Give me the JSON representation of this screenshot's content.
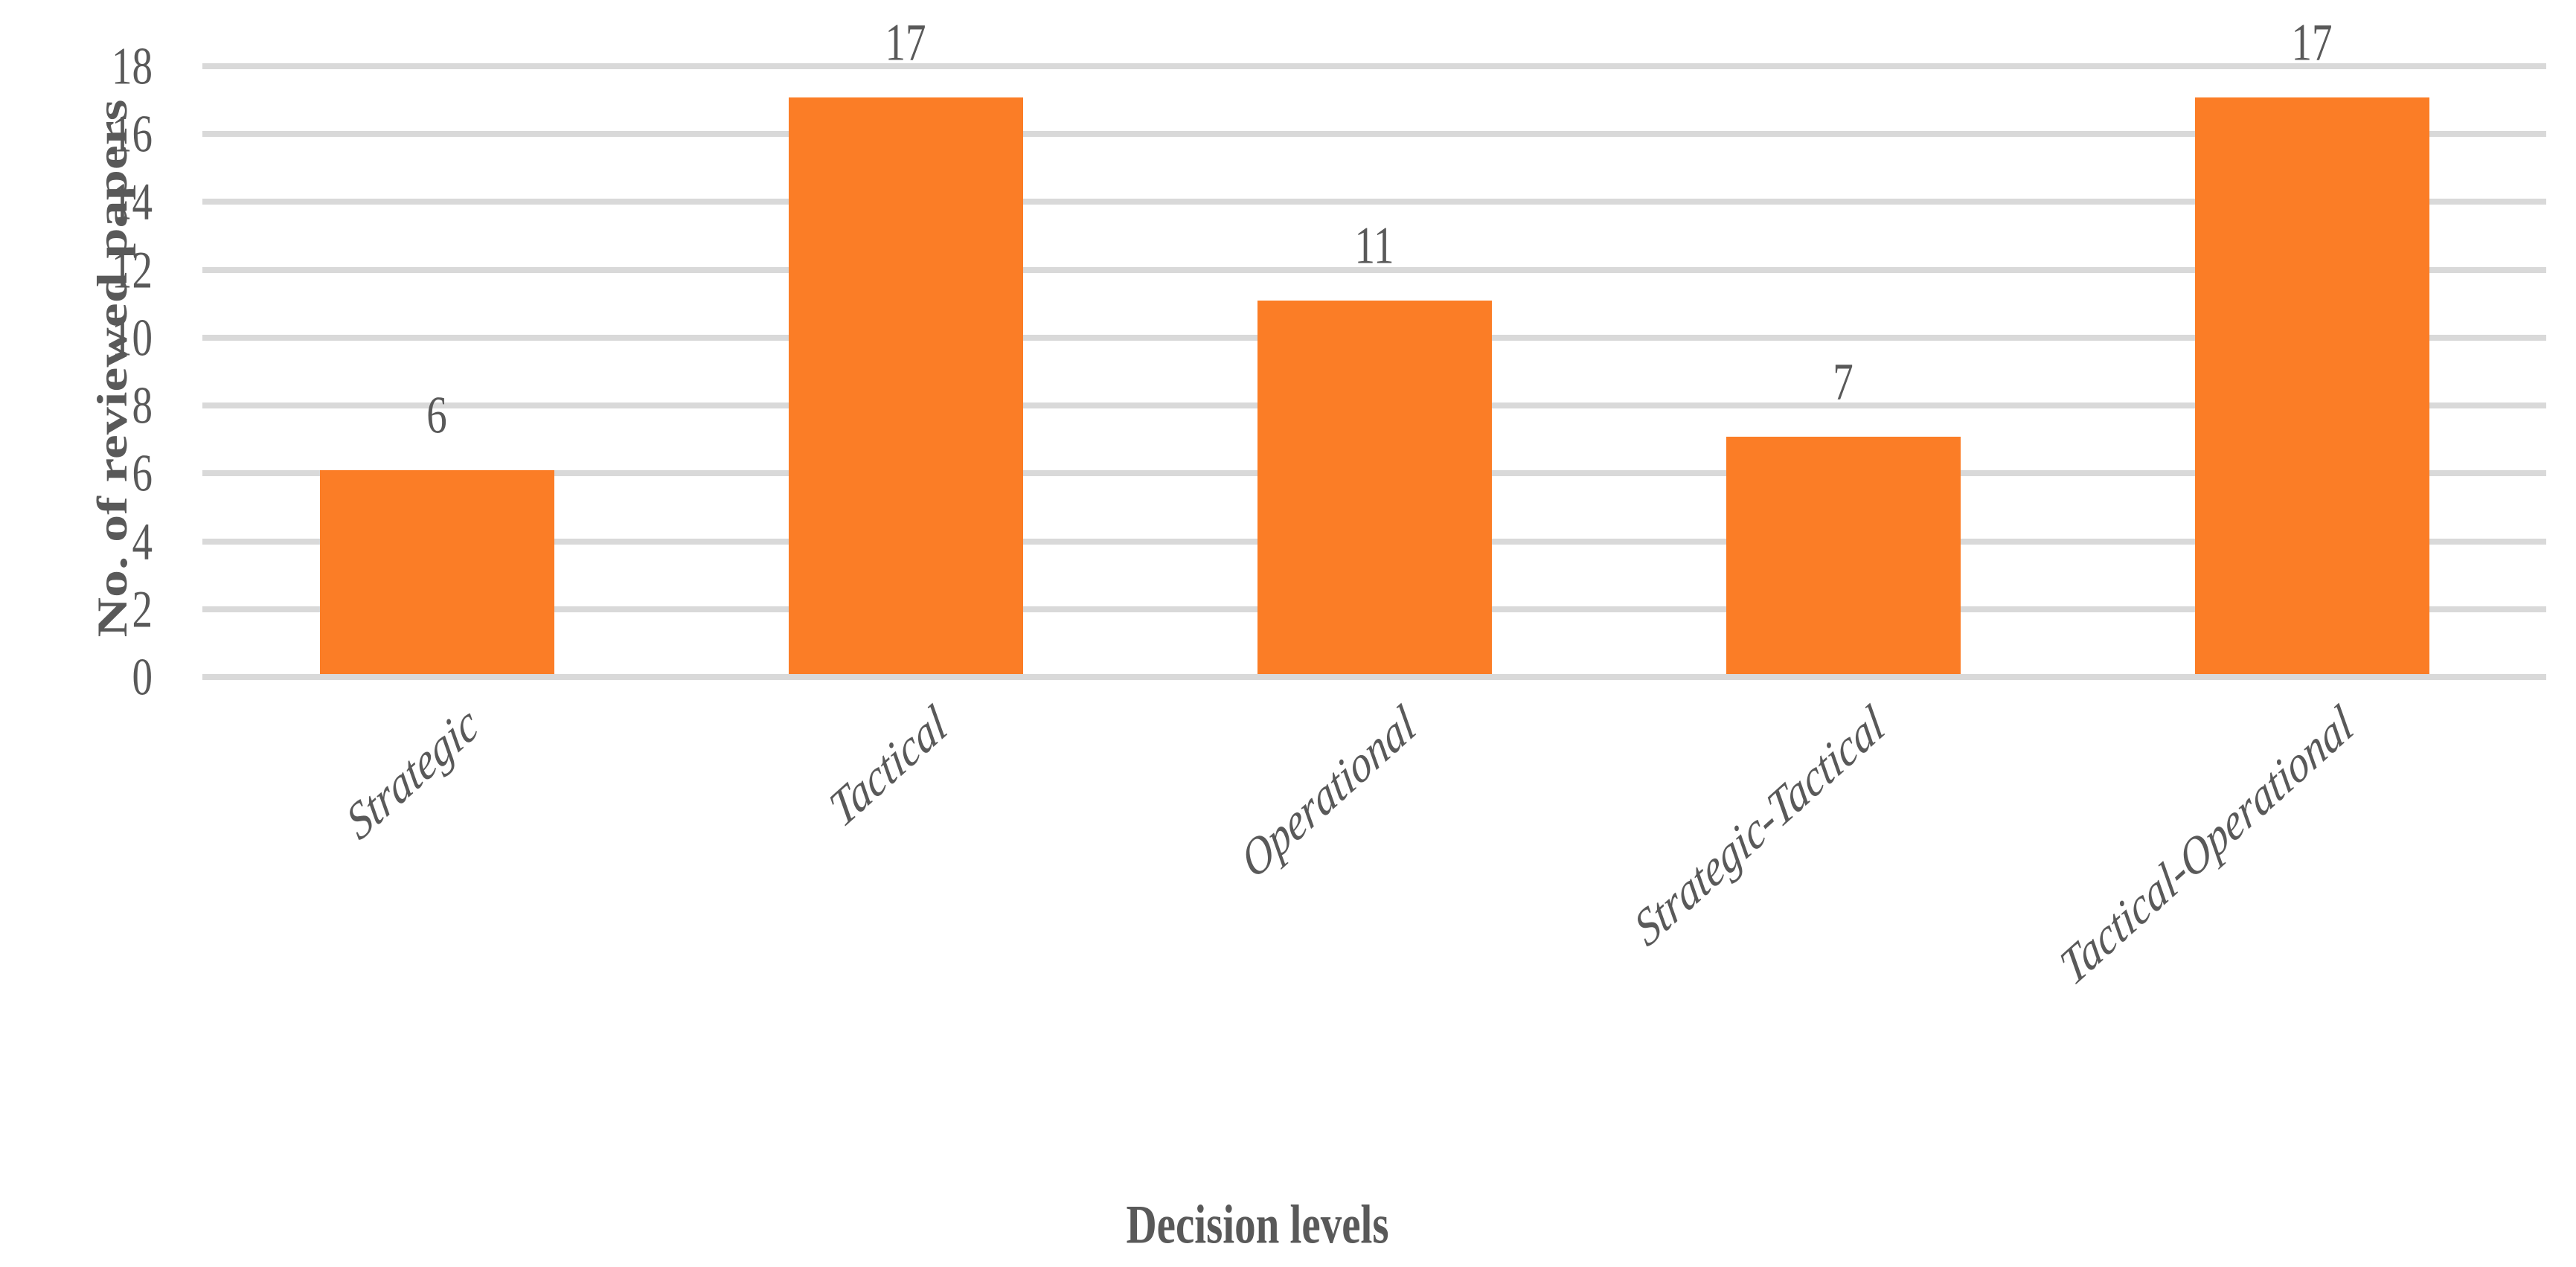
{
  "chart_data": {
    "type": "bar",
    "title": "",
    "categories": [
      "Strategic",
      "Tactical",
      "Operational",
      "Strategic-Tactical",
      "Tactical-Operational"
    ],
    "values": [
      6,
      17,
      11,
      7,
      17
    ],
    "data_labels": [
      "6",
      "17",
      "11",
      "7",
      "17"
    ],
    "xlabel": "Decision levels",
    "ylabel": "No. of reviewed papers",
    "ylim": [
      0,
      18
    ],
    "yticks": [
      0,
      2,
      4,
      6,
      8,
      10,
      12,
      14,
      16,
      18
    ],
    "grid": "horizontal",
    "legend_position": "none",
    "colors": {
      "bar": "#FB7D26",
      "gridline": "#D9D9D9",
      "text": "#595959",
      "background": "#FFFFFF"
    }
  }
}
